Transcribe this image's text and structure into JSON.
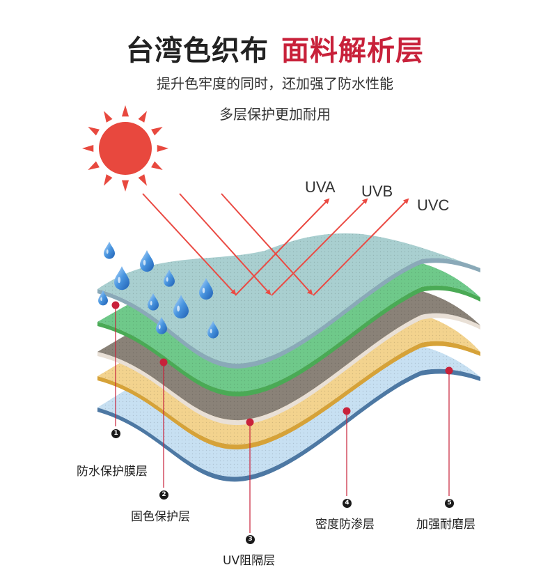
{
  "header": {
    "title_main": "台湾色织布",
    "title_accent": "面料解析层",
    "subtitle_line1": "提升色牢度的同时，还加强了防水性能",
    "subtitle_line2": "多层保护更加耐用"
  },
  "uv_labels": [
    "UVA",
    "UVB",
    "UVC"
  ],
  "layers": [
    {
      "number": "1",
      "label": "防水保护膜层"
    },
    {
      "number": "2",
      "label": "固色保护层"
    },
    {
      "number": "3",
      "label": "UV阻隔层"
    },
    {
      "number": "4",
      "label": "密度防渗层"
    },
    {
      "number": "5",
      "label": "加强耐磨层"
    }
  ],
  "colors": {
    "title_accent": "#c8213a",
    "sun": "#e8483e",
    "arrows": "#ea4a43",
    "pointer_dot": "#c8213a",
    "layer_film": "#a9cfd0",
    "layer_color_fix": "#6fc98a",
    "layer_uv": "#8a8278",
    "layer_density": "#f3d38e",
    "layer_wear": "#c7e0f2",
    "water_drop": "#3d86d9"
  },
  "icons": [
    "sun-icon",
    "water-drop-icon",
    "uv-arrow-icon"
  ]
}
